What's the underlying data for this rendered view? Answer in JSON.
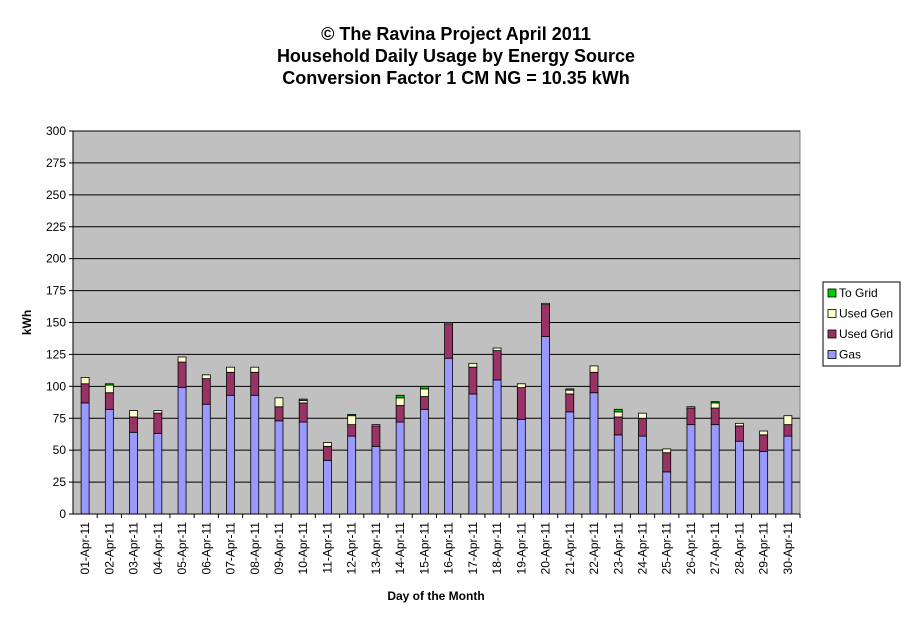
{
  "chart_data": {
    "type": "bar",
    "stacked": true,
    "title_lines": [
      "© The Ravina Project April 2011",
      "Household Daily Usage by Energy Source",
      "Conversion Factor 1 CM NG = 10.35 kWh"
    ],
    "xlabel": "Day of the Month",
    "ylabel": "kWh",
    "ylim": [
      0,
      300
    ],
    "yticks": [
      "0",
      "25",
      "50",
      "75",
      "100",
      "125",
      "150",
      "175",
      "200",
      "225",
      "250",
      "275",
      "300"
    ],
    "grid": true,
    "legend_position": "right",
    "categories": [
      "01-Apr-11",
      "02-Apr-11",
      "03-Apr-11",
      "04-Apr-11",
      "05-Apr-11",
      "06-Apr-11",
      "07-Apr-11",
      "08-Apr-11",
      "09-Apr-11",
      "10-Apr-11",
      "11-Apr-11",
      "12-Apr-11",
      "13-Apr-11",
      "14-Apr-11",
      "15-Apr-11",
      "16-Apr-11",
      "17-Apr-11",
      "18-Apr-11",
      "19-Apr-11",
      "20-Apr-11",
      "21-Apr-11",
      "22-Apr-11",
      "23-Apr-11",
      "24-Apr-11",
      "25-Apr-11",
      "26-Apr-11",
      "27-Apr-11",
      "28-Apr-11",
      "29-Apr-11",
      "30-Apr-11"
    ],
    "series": [
      {
        "name": "Gas",
        "color": "#9999FF",
        "values": [
          87,
          82,
          64,
          63,
          99,
          86,
          93,
          93,
          73,
          72,
          42,
          61,
          53,
          72,
          82,
          122,
          94,
          105,
          74,
          139,
          80,
          95,
          62,
          61,
          33,
          70,
          70,
          57,
          49,
          61
        ]
      },
      {
        "name": "Used Grid",
        "color": "#993366",
        "values": [
          15,
          13,
          12,
          16,
          20,
          20,
          18,
          18,
          11,
          15,
          11,
          9,
          16,
          13,
          10,
          27,
          21,
          23,
          25,
          25,
          14,
          16,
          14,
          14,
          15,
          13,
          13,
          12,
          13,
          9
        ]
      },
      {
        "name": "Used Gen",
        "color": "#FFFFCC",
        "values": [
          5,
          6,
          5,
          2,
          4,
          3,
          4,
          4,
          7,
          2,
          3,
          7,
          1,
          6,
          6,
          1,
          3,
          2,
          3,
          1,
          3,
          5,
          4,
          4,
          3,
          1,
          4,
          2,
          3,
          7
        ]
      },
      {
        "name": "To Grid",
        "color": "#00CC00",
        "values": [
          0,
          1,
          0,
          0,
          0,
          0,
          0,
          0,
          0,
          1,
          0,
          1,
          0,
          2,
          2,
          0,
          0,
          0,
          0,
          0,
          1,
          0,
          2,
          0,
          0,
          0,
          1,
          0,
          0,
          0
        ]
      }
    ],
    "legend_order": [
      "To Grid",
      "Used Gen",
      "Used Grid",
      "Gas"
    ],
    "plot_background": "#C0C0C0"
  }
}
